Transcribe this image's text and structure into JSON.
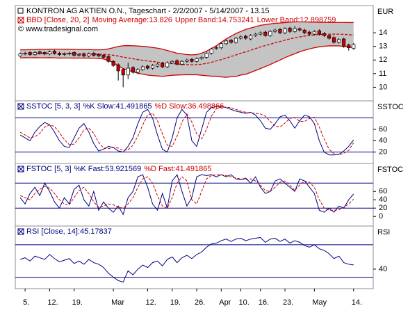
{
  "chart_data": [
    {
      "type": "candlestick",
      "title": "KONTRON AG AKTIEN O.N., Tageschart - 2/2/2007 - 5/14/2007 - 13.15",
      "indicator": "BBD [Close, 20, 2]",
      "source": "© www.tradesignal.com",
      "axis_label": "EUR",
      "up_color": "#ffffff",
      "down_color": "#cc0000",
      "band_fill": "#c4c4c4",
      "ylim": [
        9,
        16
      ],
      "yticks": [
        10,
        11,
        12,
        13,
        14
      ],
      "open": [
        12.3,
        12.45,
        12.55,
        12.4,
        12.6,
        12.55,
        12.45,
        12.65,
        12.5,
        12.4,
        12.45,
        12.55,
        12.35,
        12.45,
        12.3,
        12.5,
        12.4,
        12.35,
        12.25,
        11.9,
        11.65,
        11.3,
        10.9,
        11.45,
        11.1,
        11.3,
        11.55,
        11.4,
        11.55,
        11.75,
        11.5,
        11.8,
        11.95,
        11.7,
        11.9,
        12.05,
        11.9,
        12.1,
        12.2,
        12.5,
        12.85,
        12.9,
        13.2,
        13.45,
        13.3,
        13.6,
        13.75,
        13.55,
        13.8,
        13.9,
        14.05,
        13.8,
        14.1,
        14.25,
        14.0,
        14.35,
        14.1,
        14.3,
        14.2,
        14.05,
        13.9,
        14.15,
        13.95,
        13.8,
        13.65,
        13.3,
        13.55,
        13.1,
        12.85
      ],
      "high": [
        12.55,
        12.6,
        12.65,
        12.65,
        12.7,
        12.65,
        12.7,
        12.75,
        12.6,
        12.55,
        12.6,
        12.65,
        12.5,
        12.55,
        12.55,
        12.6,
        12.5,
        12.45,
        12.35,
        12.0,
        11.75,
        11.4,
        11.8,
        11.55,
        11.4,
        11.6,
        11.65,
        11.7,
        11.8,
        11.85,
        11.9,
        12.0,
        12.05,
        12.0,
        12.1,
        12.15,
        12.2,
        12.3,
        12.6,
        12.9,
        13.0,
        13.3,
        13.5,
        13.55,
        13.7,
        13.8,
        13.85,
        13.9,
        14.0,
        14.1,
        14.15,
        14.2,
        14.3,
        14.35,
        14.4,
        14.45,
        14.5,
        14.4,
        14.3,
        14.15,
        14.2,
        14.25,
        14.05,
        13.9,
        13.75,
        13.6,
        13.65,
        13.2,
        13.25
      ],
      "low": [
        12.2,
        12.35,
        12.3,
        12.3,
        12.4,
        12.35,
        12.35,
        12.4,
        12.3,
        12.3,
        12.35,
        12.25,
        12.25,
        12.2,
        12.2,
        12.25,
        12.2,
        12.1,
        11.8,
        11.5,
        10.5,
        10.0,
        10.6,
        11.0,
        10.95,
        11.2,
        11.3,
        11.3,
        11.45,
        11.4,
        11.4,
        11.7,
        11.6,
        11.6,
        11.8,
        11.8,
        11.8,
        12.0,
        12.1,
        12.4,
        12.75,
        12.8,
        13.1,
        13.2,
        13.2,
        13.5,
        13.5,
        13.45,
        13.7,
        13.8,
        13.7,
        13.7,
        14.0,
        13.9,
        13.9,
        14.0,
        14.0,
        14.1,
        13.9,
        13.8,
        13.8,
        13.8,
        13.7,
        13.5,
        13.2,
        13.2,
        12.9,
        12.7,
        12.75
      ],
      "close": [
        12.45,
        12.5,
        12.4,
        12.55,
        12.5,
        12.45,
        12.6,
        12.5,
        12.4,
        12.45,
        12.5,
        12.35,
        12.4,
        12.3,
        12.45,
        12.35,
        12.3,
        12.2,
        11.9,
        11.6,
        11.2,
        10.9,
        11.4,
        11.1,
        11.3,
        11.5,
        11.4,
        11.6,
        11.7,
        11.5,
        11.8,
        11.9,
        11.7,
        11.9,
        12.0,
        11.9,
        12.1,
        12.2,
        12.5,
        12.8,
        12.9,
        13.2,
        13.4,
        13.3,
        13.6,
        13.7,
        13.6,
        13.8,
        13.9,
        14.0,
        13.8,
        14.1,
        14.2,
        14.0,
        14.3,
        14.1,
        14.3,
        14.2,
        14.0,
        13.9,
        14.1,
        13.9,
        13.8,
        13.6,
        13.3,
        13.5,
        13.0,
        12.9,
        13.15
      ],
      "series": [
        {
          "name": "Moving Average:13.826",
          "color": "#cc0000",
          "dash": true,
          "values": [
            12.45,
            12.46,
            12.46,
            12.47,
            12.47,
            12.47,
            12.48,
            12.48,
            12.47,
            12.47,
            12.47,
            12.46,
            12.46,
            12.45,
            12.45,
            12.44,
            12.43,
            12.42,
            12.39,
            12.35,
            12.29,
            12.21,
            12.16,
            12.09,
            12.03,
            11.98,
            11.93,
            11.89,
            11.85,
            11.8,
            11.77,
            11.74,
            11.7,
            11.68,
            11.66,
            11.65,
            11.66,
            11.69,
            11.75,
            11.83,
            11.93,
            12.03,
            12.14,
            12.26,
            12.37,
            12.5,
            12.6,
            12.72,
            12.84,
            12.96,
            13.06,
            13.16,
            13.27,
            13.36,
            13.46,
            13.55,
            13.63,
            13.7,
            13.76,
            13.8,
            13.84,
            13.87,
            13.89,
            13.9,
            13.9,
            13.9,
            13.88,
            13.86,
            13.826
          ]
        },
        {
          "name": "Upper Band:14.753241",
          "color": "#cc0000",
          "dash": false,
          "values": [
            12.75,
            12.75,
            12.76,
            12.77,
            12.78,
            12.78,
            12.79,
            12.8,
            12.8,
            12.79,
            12.79,
            12.78,
            12.77,
            12.76,
            12.76,
            12.75,
            12.75,
            12.76,
            12.82,
            12.9,
            13.0,
            13.05,
            13.06,
            13.05,
            13.03,
            13.0,
            12.97,
            12.92,
            12.87,
            12.8,
            12.7,
            12.6,
            12.5,
            12.45,
            12.4,
            12.38,
            12.4,
            12.5,
            12.65,
            12.85,
            13.05,
            13.3,
            13.55,
            13.75,
            13.95,
            14.1,
            14.25,
            14.35,
            14.45,
            14.55,
            14.6,
            14.65,
            14.7,
            14.72,
            14.75,
            14.78,
            14.8,
            14.8,
            14.8,
            14.78,
            14.78,
            14.77,
            14.77,
            14.76,
            14.76,
            14.76,
            14.76,
            14.75,
            14.753241
          ]
        },
        {
          "name": "Lower Band:12.898759",
          "color": "#cc0000",
          "dash": false,
          "values": [
            12.15,
            12.17,
            12.16,
            12.17,
            12.16,
            12.16,
            12.17,
            12.16,
            12.14,
            12.15,
            12.15,
            12.14,
            12.15,
            12.14,
            12.14,
            12.13,
            12.11,
            12.08,
            11.96,
            11.8,
            11.58,
            11.37,
            11.26,
            11.13,
            11.03,
            10.96,
            10.89,
            10.86,
            10.83,
            10.8,
            10.84,
            10.88,
            10.9,
            10.91,
            10.92,
            10.92,
            10.92,
            10.88,
            10.85,
            10.81,
            10.81,
            10.76,
            10.73,
            10.77,
            10.79,
            10.9,
            10.95,
            11.09,
            11.23,
            11.37,
            11.52,
            11.67,
            11.84,
            12.0,
            12.17,
            12.32,
            12.46,
            12.6,
            12.72,
            12.82,
            12.9,
            12.97,
            13.01,
            13.04,
            13.04,
            13.04,
            13.0,
            12.97,
            12.898759
          ]
        }
      ]
    },
    {
      "type": "line",
      "indicator": "SSTOC [5, 3, 3]",
      "axis_label": "SSTOC",
      "ylim": [
        0,
        110
      ],
      "yticks": [
        20,
        40,
        60
      ],
      "hlines": [
        20,
        80
      ],
      "hline_color": "#000080",
      "series": [
        {
          "name": "%K Slow:41.491865",
          "color": "#000080",
          "dash": false,
          "values": [
            50,
            45,
            40,
            55,
            65,
            72,
            68,
            55,
            40,
            30,
            28,
            45,
            62,
            70,
            55,
            35,
            22,
            25,
            30,
            28,
            22,
            20,
            30,
            45,
            70,
            90,
            95,
            80,
            50,
            25,
            20,
            45,
            80,
            95,
            85,
            40,
            30,
            60,
            90,
            98,
            100,
            100,
            98,
            95,
            92,
            90,
            88,
            90,
            85,
            75,
            62,
            60,
            70,
            82,
            85,
            75,
            62,
            75,
            85,
            82,
            70,
            40,
            20,
            15,
            15,
            16,
            22,
            30,
            41.491865
          ]
        },
        {
          "name": "%D Slow:36.498866",
          "color": "#cc0000",
          "dash": true,
          "values": [
            55,
            50,
            45,
            47,
            53,
            64,
            68,
            65,
            54,
            42,
            33,
            34,
            45,
            59,
            62,
            53,
            37,
            27,
            26,
            28,
            27,
            23,
            24,
            32,
            48,
            68,
            85,
            88,
            75,
            52,
            32,
            30,
            48,
            73,
            87,
            73,
            52,
            43,
            60,
            83,
            96,
            99,
            99,
            98,
            95,
            92,
            90,
            89,
            88,
            87,
            83,
            74,
            66,
            64,
            71,
            79,
            81,
            74,
            74,
            79,
            81,
            64,
            43,
            25,
            17,
            15,
            18,
            23,
            36.498866
          ]
        }
      ]
    },
    {
      "type": "line",
      "indicator": "FSTOC [5, 3]",
      "axis_label": "FSTOC",
      "ylim": [
        -23,
        127
      ],
      "yticks": [
        0,
        20,
        40,
        60
      ],
      "hlines": [
        20,
        80
      ],
      "hline_color": "#000080",
      "series": [
        {
          "name": "%K Fast:53.921569",
          "color": "#000080",
          "dash": false,
          "values": [
            45,
            30,
            55,
            70,
            50,
            80,
            60,
            35,
            20,
            45,
            30,
            65,
            75,
            40,
            25,
            60,
            15,
            35,
            20,
            10,
            25,
            5,
            45,
            60,
            95,
            100,
            70,
            30,
            15,
            55,
            20,
            85,
            100,
            60,
            25,
            45,
            95,
            100,
            98,
            100,
            95,
            100,
            95,
            100,
            90,
            88,
            92,
            80,
            95,
            70,
            55,
            60,
            85,
            90,
            80,
            70,
            60,
            90,
            85,
            70,
            55,
            15,
            10,
            20,
            10,
            25,
            20,
            40,
            53.921569
          ]
        },
        {
          "name": "%D Fast:41.491865",
          "color": "#cc0000",
          "dash": true,
          "values": [
            50,
            45,
            40,
            55,
            65,
            72,
            68,
            55,
            40,
            30,
            28,
            45,
            62,
            70,
            55,
            35,
            22,
            25,
            30,
            28,
            22,
            20,
            30,
            45,
            70,
            90,
            95,
            80,
            50,
            25,
            20,
            45,
            80,
            95,
            85,
            40,
            30,
            60,
            90,
            98,
            100,
            100,
            98,
            95,
            92,
            90,
            88,
            90,
            85,
            75,
            62,
            60,
            70,
            82,
            85,
            75,
            62,
            75,
            85,
            82,
            70,
            40,
            20,
            15,
            15,
            16,
            22,
            30,
            41.491865
          ]
        }
      ]
    },
    {
      "type": "line",
      "indicator": "RSI [Close, 14]:45.17837",
      "axis_label": "RSI",
      "ylim": [
        16,
        93
      ],
      "yticks": [
        40
      ],
      "hlines": [
        30,
        70
      ],
      "hline_color": "#000080",
      "xlim": [
        -1,
        72
      ],
      "xticks": [
        {
          "value": 1,
          "label": "5."
        },
        {
          "value": 6,
          "label": "12."
        },
        {
          "value": 11,
          "label": "19."
        },
        {
          "value": 19,
          "label": "Mar"
        },
        {
          "value": 26,
          "label": "12."
        },
        {
          "value": 31,
          "label": "19."
        },
        {
          "value": 36,
          "label": "26."
        },
        {
          "value": 41,
          "label": "Apr"
        },
        {
          "value": 45,
          "label": "10."
        },
        {
          "value": 49,
          "label": "16."
        },
        {
          "value": 54,
          "label": "23."
        },
        {
          "value": 60,
          "label": "May"
        },
        {
          "value": 68,
          "label": "14."
        }
      ],
      "series": [
        {
          "color": "#000080",
          "dash": false,
          "values": [
            52,
            54,
            50,
            56,
            54,
            52,
            58,
            53,
            49,
            51,
            53,
            47,
            50,
            46,
            52,
            48,
            46,
            42,
            35,
            30,
            26,
            24,
            38,
            33,
            40,
            45,
            42,
            48,
            50,
            44,
            52,
            55,
            48,
            54,
            57,
            53,
            58,
            61,
            67,
            71,
            72,
            75,
            77,
            74,
            77,
            78,
            75,
            77,
            78,
            79,
            73,
            77,
            78,
            74,
            77,
            72,
            75,
            73,
            69,
            67,
            70,
            65,
            63,
            59,
            53,
            56,
            48,
            46,
            45.17837
          ]
        }
      ]
    }
  ]
}
